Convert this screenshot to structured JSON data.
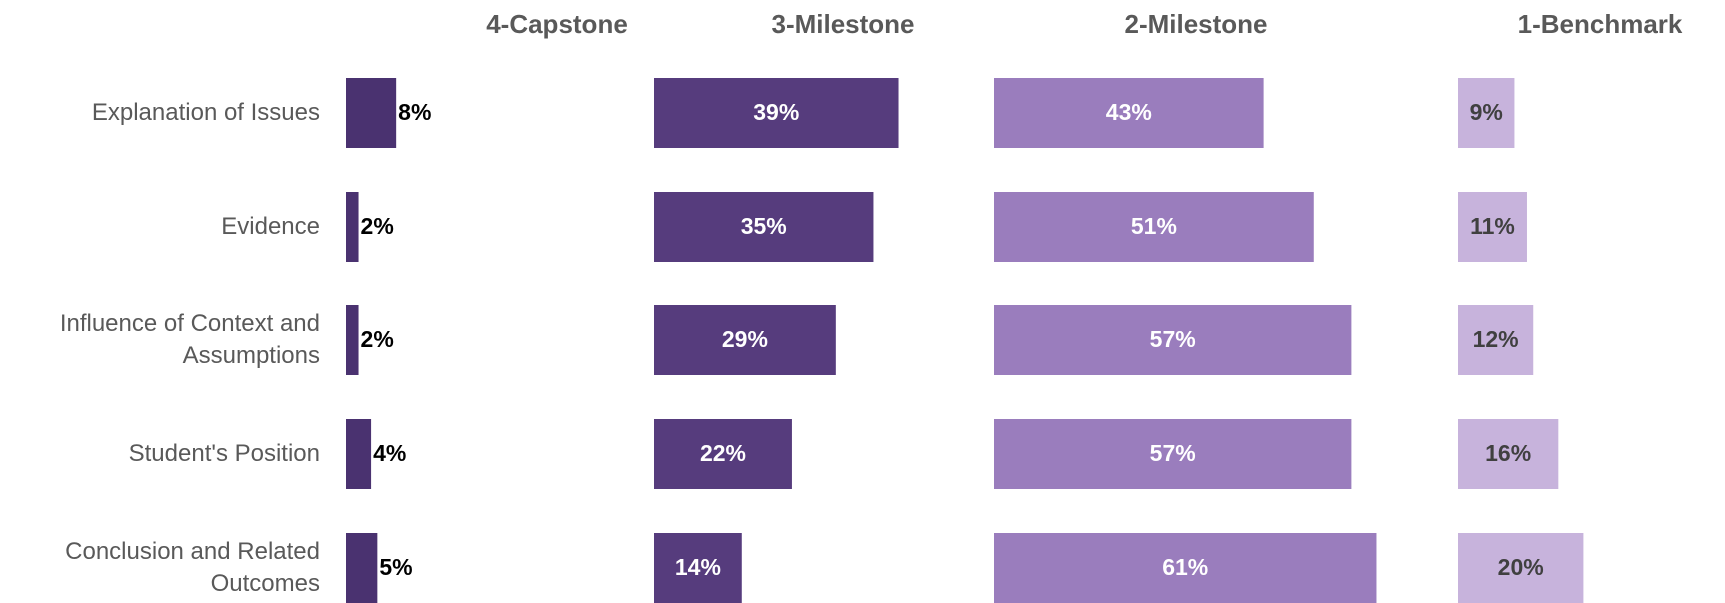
{
  "chart_data": {
    "type": "bar",
    "categories": [
      "Explanation of Issues",
      "Evidence",
      "Influence of Context and Assumptions",
      "Student's Position",
      "Conclusion and Related Outcomes"
    ],
    "series": [
      {
        "name": "4-Capstone",
        "color": "#4a3270",
        "values": [
          8,
          2,
          2,
          4,
          5
        ],
        "value_labels": [
          "8%",
          "2%",
          "2%",
          "4%",
          "5%"
        ]
      },
      {
        "name": "3-Milestone",
        "color": "#563c7d",
        "values": [
          39,
          35,
          29,
          22,
          14
        ],
        "value_labels": [
          "39%",
          "35%",
          "29%",
          "22%",
          "14%"
        ]
      },
      {
        "name": "2-Milestone",
        "color": "#9a7dbd",
        "values": [
          43,
          51,
          57,
          57,
          61
        ],
        "value_labels": [
          "43%",
          "51%",
          "57%",
          "57%",
          "61%"
        ]
      },
      {
        "name": "1-Benchmark",
        "color": "#c7b3dc",
        "values": [
          9,
          11,
          12,
          16,
          20
        ],
        "value_labels": [
          "9%",
          "11%",
          "12%",
          "16%",
          "20%"
        ]
      }
    ]
  }
}
